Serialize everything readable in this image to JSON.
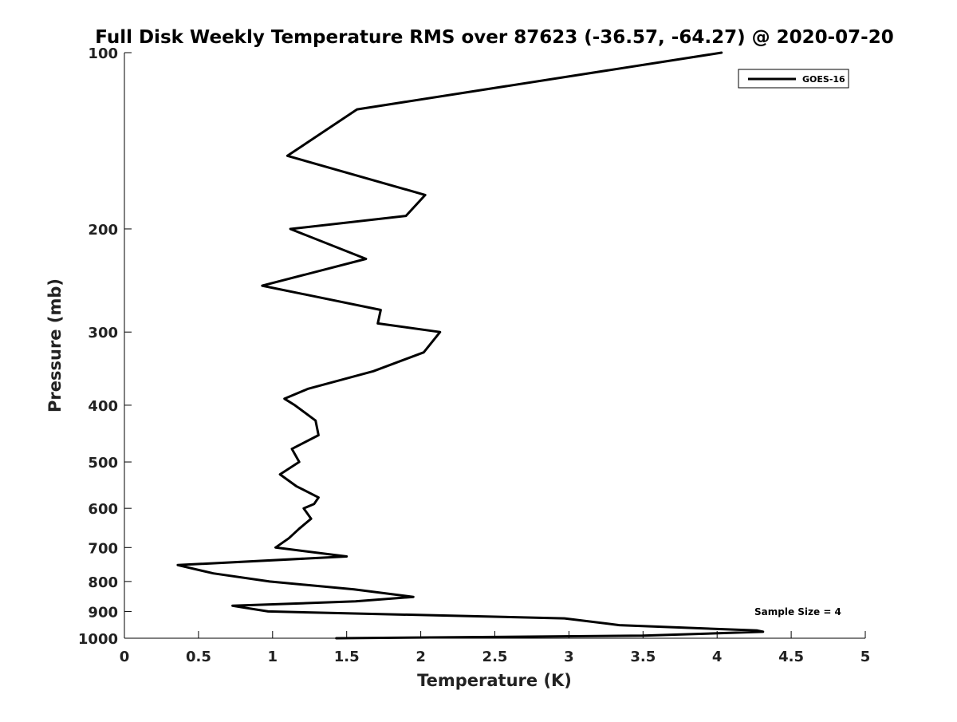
{
  "chart_data": {
    "type": "line",
    "title": "Full Disk Weekly Temperature RMS over 87623 (-36.57, -64.27) @ 2020-07-20",
    "xlabel": "Temperature (K)",
    "ylabel": "Pressure (mb)",
    "xlim": [
      0,
      5
    ],
    "ylim": [
      1000,
      100
    ],
    "y_scale": "log",
    "grid": false,
    "legend_position": "top-right",
    "x_ticks": [
      0,
      0.5,
      1,
      1.5,
      2,
      2.5,
      3,
      3.5,
      4,
      4.5,
      5
    ],
    "x_tick_labels": [
      "0",
      "0.5",
      "1",
      "1.5",
      "2",
      "2.5",
      "3",
      "3.5",
      "4",
      "4.5",
      "5"
    ],
    "y_ticks": [
      100,
      200,
      300,
      400,
      500,
      600,
      700,
      800,
      900,
      1000
    ],
    "y_tick_labels": [
      "100",
      "200",
      "300",
      "400",
      "500",
      "600",
      "700",
      "800",
      "900",
      "1000"
    ],
    "annotation": "Sample Size = 4",
    "colors": {
      "line": "#000000",
      "axis": "#000000"
    },
    "series": [
      {
        "name": "GOES-16",
        "points": [
          [
            4.03,
            100
          ],
          [
            1.57,
            125
          ],
          [
            1.1,
            150
          ],
          [
            2.03,
            175
          ],
          [
            1.9,
            190
          ],
          [
            1.12,
            200
          ],
          [
            1.63,
            225
          ],
          [
            0.93,
            250
          ],
          [
            1.73,
            275
          ],
          [
            1.71,
            290
          ],
          [
            2.13,
            300
          ],
          [
            2.02,
            325
          ],
          [
            1.68,
            350
          ],
          [
            1.24,
            375
          ],
          [
            1.08,
            390
          ],
          [
            1.15,
            400
          ],
          [
            1.29,
            425
          ],
          [
            1.31,
            450
          ],
          [
            1.13,
            475
          ],
          [
            1.18,
            500
          ],
          [
            1.05,
            525
          ],
          [
            1.16,
            550
          ],
          [
            1.31,
            575
          ],
          [
            1.28,
            590
          ],
          [
            1.21,
            600
          ],
          [
            1.26,
            625
          ],
          [
            1.18,
            650
          ],
          [
            1.11,
            675
          ],
          [
            1.02,
            700
          ],
          [
            1.5,
            725
          ],
          [
            0.36,
            750
          ],
          [
            0.6,
            775
          ],
          [
            0.98,
            800
          ],
          [
            1.55,
            825
          ],
          [
            1.95,
            850
          ],
          [
            1.56,
            865
          ],
          [
            0.73,
            880
          ],
          [
            0.97,
            900
          ],
          [
            2.97,
            925
          ],
          [
            3.34,
            950
          ],
          [
            4.27,
            970
          ],
          [
            4.31,
            975
          ],
          [
            3.5,
            990
          ],
          [
            1.43,
            1000
          ]
        ]
      }
    ]
  }
}
